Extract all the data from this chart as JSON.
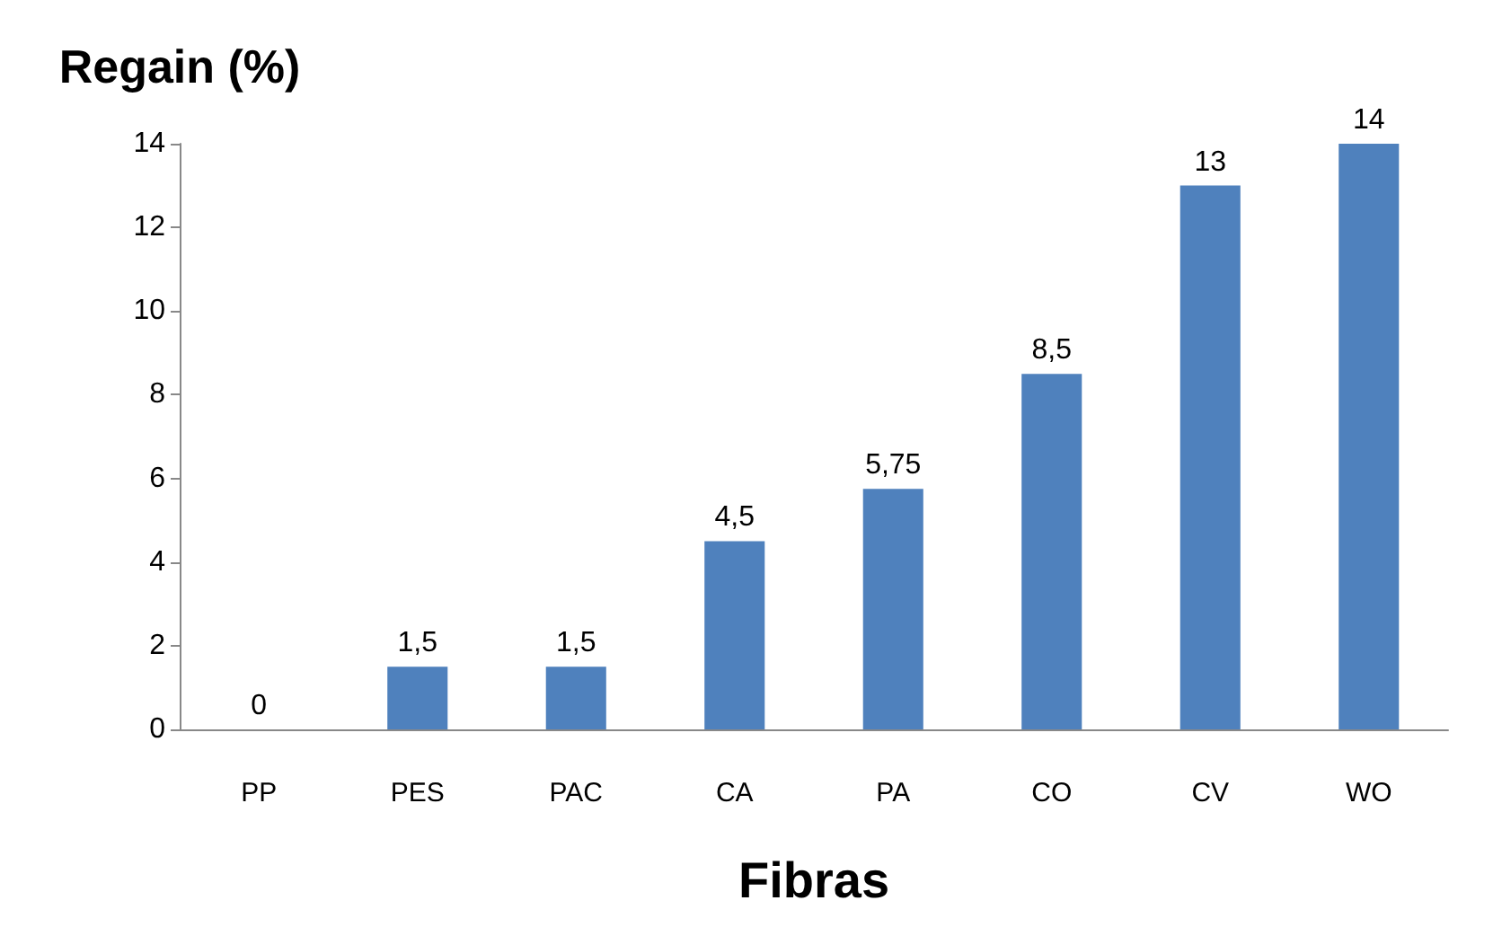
{
  "chart_data": {
    "type": "bar",
    "ylabel": "Regain (%)",
    "xlabel": "Fibras",
    "categories": [
      "PP",
      "PES",
      "PAC",
      "CA",
      "PA",
      "CO",
      "CV",
      "WO"
    ],
    "values": [
      0,
      1.5,
      1.5,
      4.5,
      5.75,
      8.5,
      13,
      14
    ],
    "value_labels": [
      "0",
      "1,5",
      "1,5",
      "4,5",
      "5,75",
      "8,5",
      "13",
      "14"
    ],
    "color": "#4f81bd",
    "ylim": [
      0,
      14
    ],
    "yticks": [
      0,
      2,
      4,
      6,
      8,
      10,
      12,
      14
    ],
    "grid": false
  }
}
